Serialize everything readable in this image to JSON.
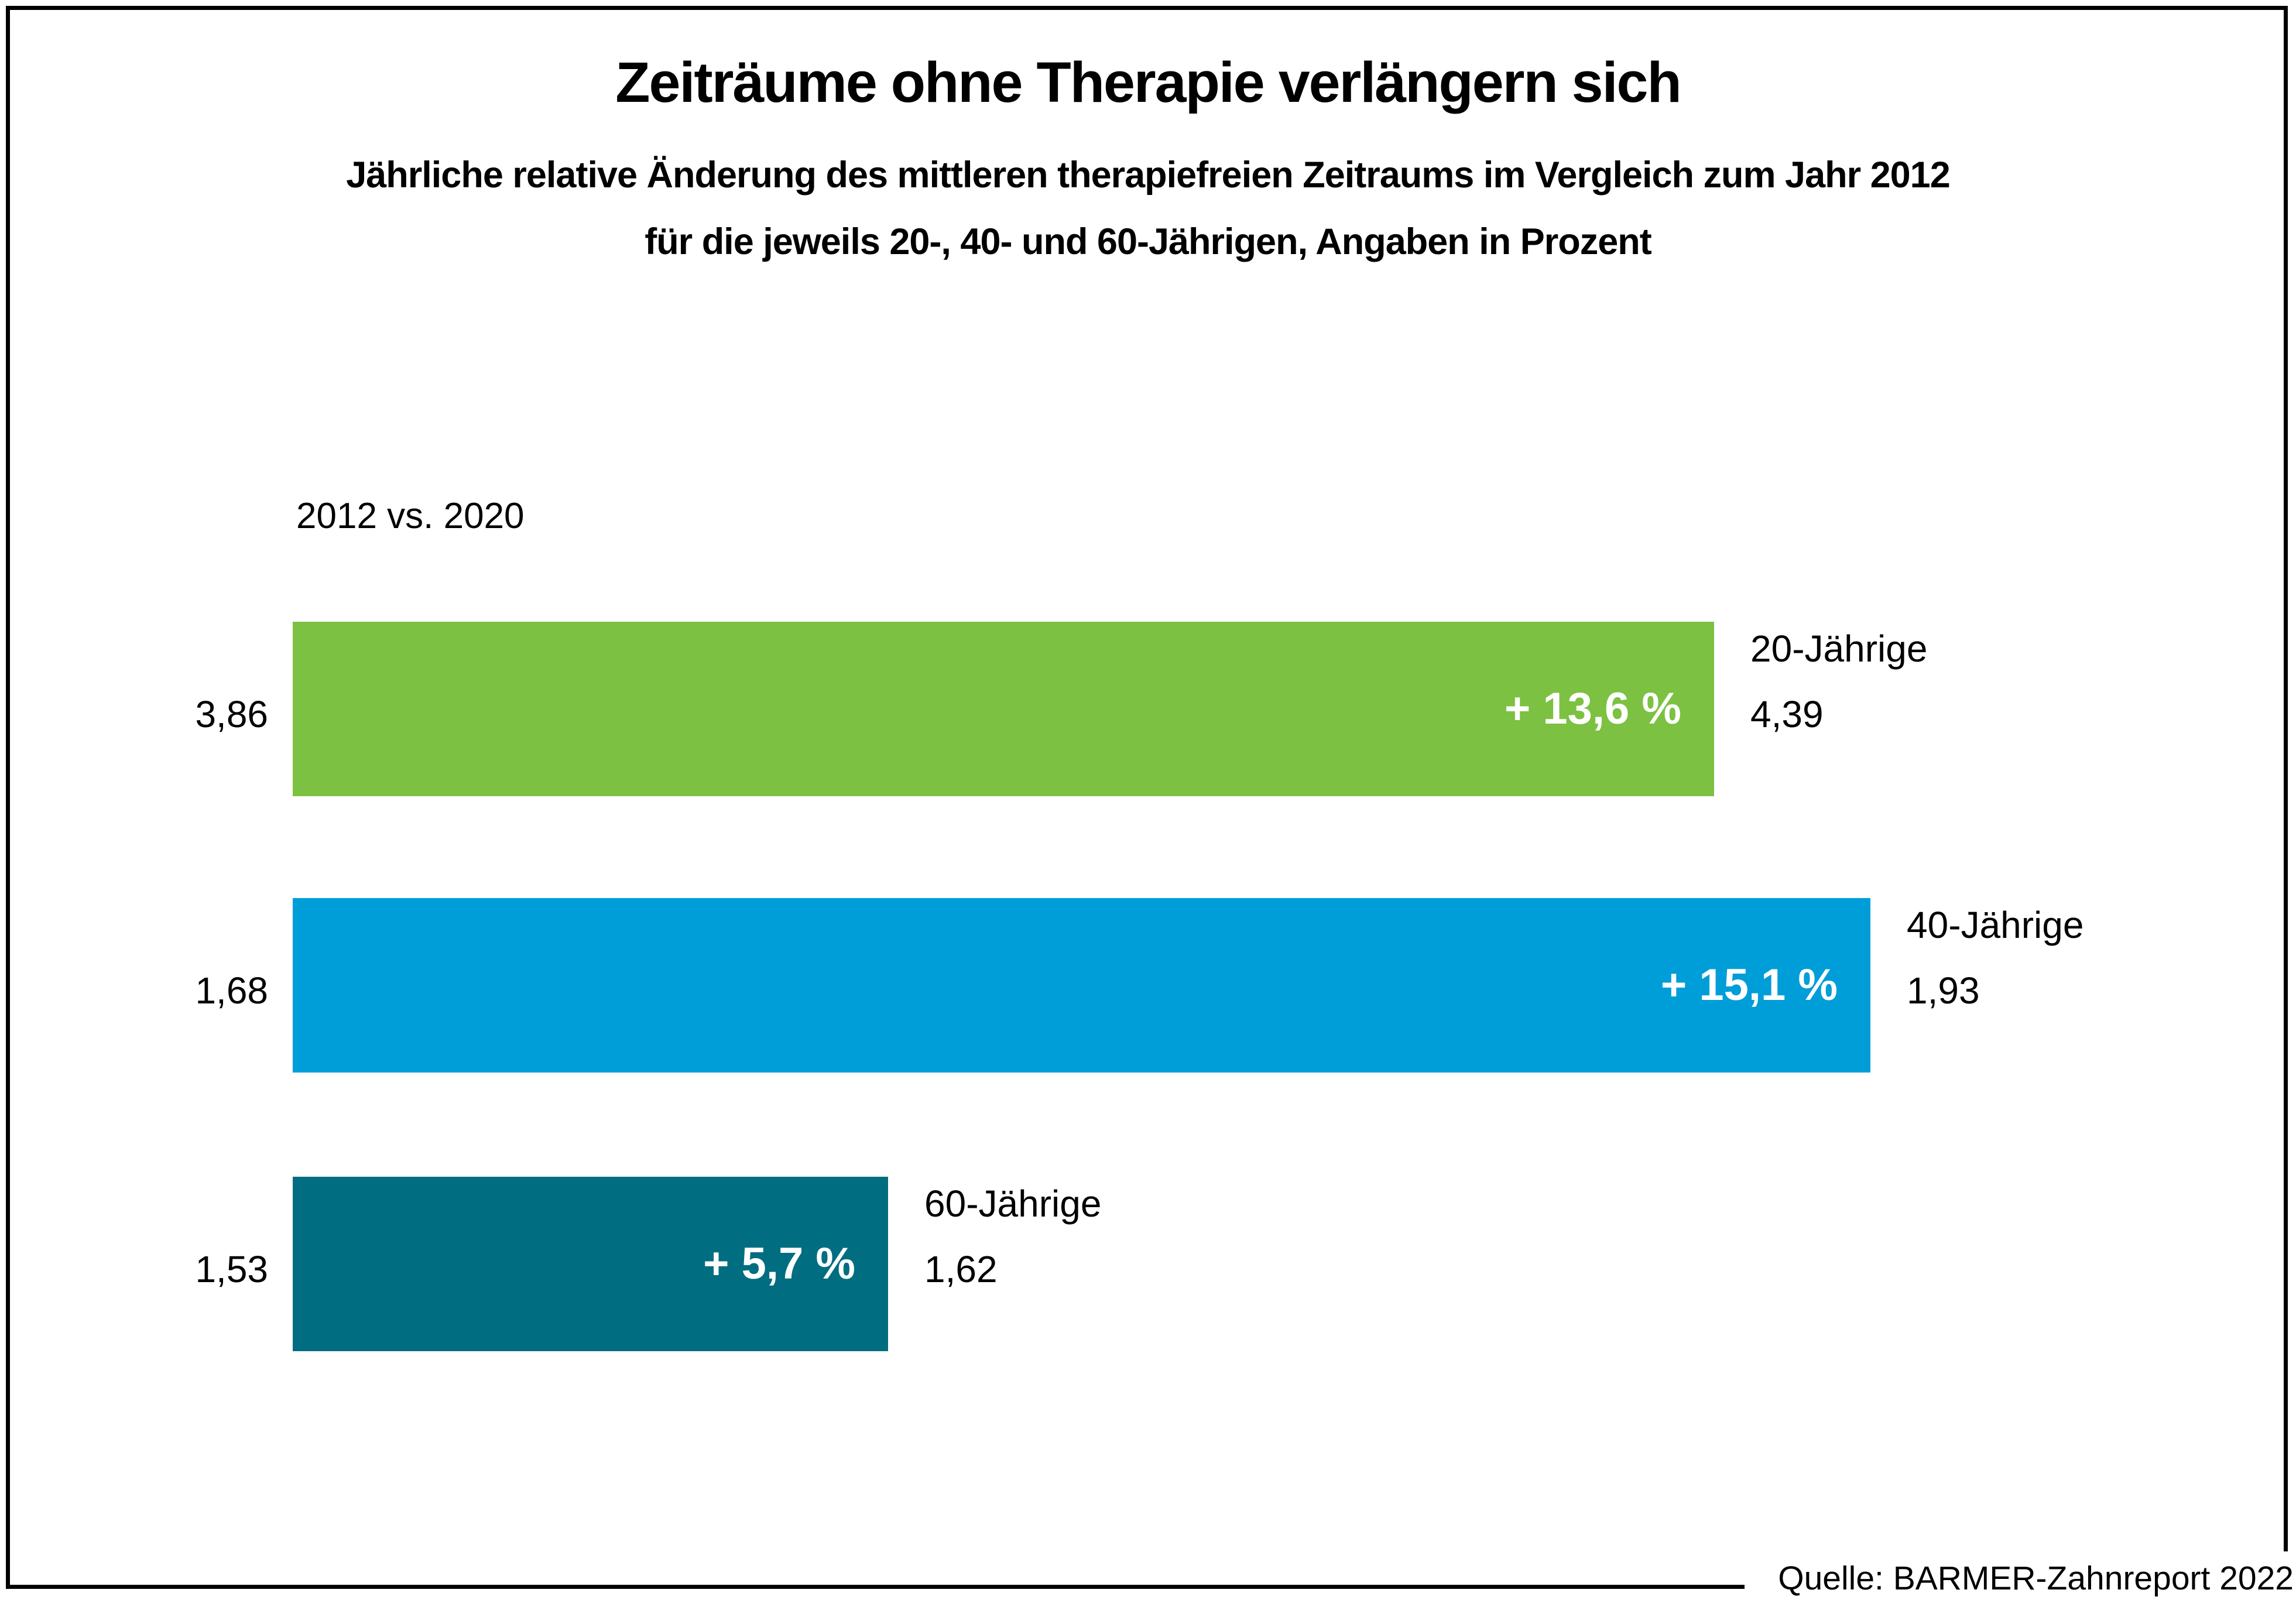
{
  "title": "Zeiträume ohne Therapie verlängern sich",
  "subtitle_line1": "Jährliche relative Änderung des mittleren therapiefreien Zeitraums im Vergleich zum Jahr 2012",
  "subtitle_line2": "für die jeweils 20-, 40- und 60-Jährigen, Angaben in Prozent",
  "comparison_label": "2012 vs. 2020",
  "source": "Quelle: BARMER-Zahnreport 2022",
  "colors": {
    "bar_green": "#7cc142",
    "bar_blue": "#009ed8",
    "bar_teal": "#006e80",
    "text": "#000000",
    "change_text": "#ffffff",
    "background": "#ffffff",
    "frame": "#000000"
  },
  "chart_data": {
    "type": "bar",
    "orientation": "horizontal",
    "title": "Zeiträume ohne Therapie verlängern sich",
    "subtitle": "Jährliche relative Änderung des mittleren therapiefreien Zeitraums im Vergleich zum Jahr 2012 für die jeweils 20-, 40- und 60-Jährigen, Angaben in Prozent",
    "unit": "Prozent",
    "comparison": "2012 vs. 2020",
    "categories": [
      "20-Jährige",
      "40-Jährige",
      "60-Jährige"
    ],
    "series": [
      {
        "name": "2012",
        "values": [
          3.86,
          1.68,
          1.53
        ]
      },
      {
        "name": "2020",
        "values": [
          4.39,
          1.93,
          1.62
        ]
      }
    ],
    "change_percent": [
      13.6,
      15.1,
      5.7
    ],
    "bars": [
      {
        "category": "20-Jährige",
        "value_2012_label": "3,86",
        "value_2020_label": "4,39",
        "change_label": "+ 13,6 %",
        "change_percent": 13.6,
        "color": "#7cc142"
      },
      {
        "category": "40-Jährige",
        "value_2012_label": "1,68",
        "value_2020_label": "1,93",
        "change_label": "+ 15,1 %",
        "change_percent": 15.1,
        "color": "#009ed8"
      },
      {
        "category": "60-Jährige",
        "value_2012_label": "1,53",
        "value_2020_label": "1,62",
        "change_label": "+ 5,7 %",
        "change_percent": 5.7,
        "color": "#006e80"
      }
    ],
    "legend": "none",
    "grid": false,
    "axis_ticks": "none"
  }
}
